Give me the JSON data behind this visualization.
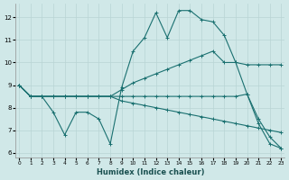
{
  "xlabel": "Humidex (Indice chaleur)",
  "background_color": "#d0e8e8",
  "grid_color": "#b8d4d4",
  "line_color": "#1a7070",
  "xlim": [
    -0.3,
    23.3
  ],
  "ylim": [
    5.8,
    12.6
  ],
  "xticks": [
    0,
    1,
    2,
    3,
    4,
    5,
    6,
    7,
    8,
    9,
    10,
    11,
    12,
    13,
    14,
    15,
    16,
    17,
    18,
    19,
    20,
    21,
    22,
    23
  ],
  "yticks": [
    6,
    7,
    8,
    9,
    10,
    11,
    12
  ],
  "lines": [
    [
      9.0,
      8.5,
      8.5,
      7.8,
      6.8,
      7.8,
      7.8,
      7.5,
      6.4,
      8.9,
      10.5,
      11.1,
      12.2,
      11.1,
      12.3,
      12.3,
      11.9,
      11.8,
      11.2,
      10.0,
      8.6,
      7.5,
      6.7,
      6.2
    ],
    [
      9.0,
      8.5,
      8.5,
      8.5,
      8.5,
      8.5,
      8.5,
      8.5,
      8.5,
      8.5,
      8.5,
      8.5,
      8.5,
      8.5,
      8.5,
      8.5,
      8.5,
      8.5,
      8.5,
      8.5,
      8.6,
      7.3,
      6.4,
      6.2
    ],
    [
      9.0,
      8.5,
      8.5,
      8.5,
      8.5,
      8.5,
      8.5,
      8.5,
      8.5,
      8.8,
      9.1,
      9.3,
      9.5,
      9.7,
      9.9,
      10.1,
      10.3,
      10.5,
      10.0,
      10.0,
      9.9,
      9.9,
      9.9,
      9.9
    ],
    [
      9.0,
      8.5,
      8.5,
      8.5,
      8.5,
      8.5,
      8.5,
      8.5,
      8.5,
      8.3,
      8.2,
      8.1,
      8.0,
      7.9,
      7.8,
      7.7,
      7.6,
      7.5,
      7.4,
      7.3,
      7.2,
      7.1,
      7.0,
      6.9
    ]
  ]
}
